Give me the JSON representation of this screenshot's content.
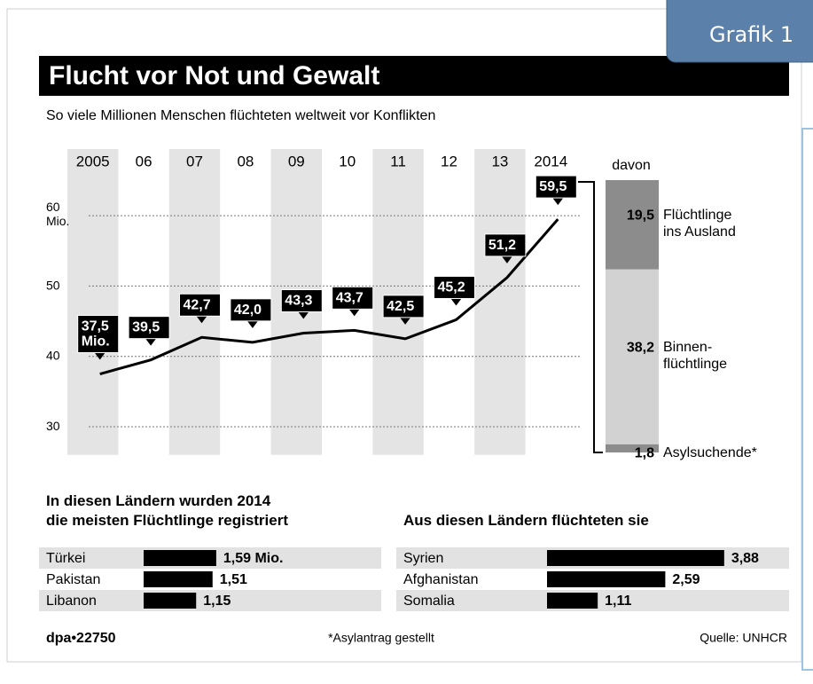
{
  "tab": "Grafik 1",
  "footer": {
    "source_id": "dpa•22750",
    "note": "*Asylantrag gestellt",
    "source": "Quelle: UNHCR"
  },
  "chart_data": [
    {
      "type": "line",
      "title": "Flucht vor Not und Gewalt",
      "subtitle": "So viele Millionen Menschen flüchteten weltweit vor Konflikten",
      "categories": [
        "2005",
        "06",
        "07",
        "08",
        "09",
        "10",
        "11",
        "12",
        "13",
        "2014"
      ],
      "values": [
        37.5,
        39.5,
        42.7,
        42.0,
        43.3,
        43.7,
        42.5,
        45.2,
        51.2,
        59.5
      ],
      "value_labels": [
        "37,5 Mio.",
        "39,5",
        "42,7",
        "42,0",
        "43,3",
        "43,7",
        "42,5",
        "45,2",
        "51,2",
        "59,5"
      ],
      "color": "#000000",
      "ylim": [
        26,
        64
      ],
      "yticks": [
        30,
        40,
        50,
        {
          "value": 60,
          "label": "60 Mio."
        }
      ],
      "grid": true
    },
    {
      "type": "stacked_bar",
      "title": "davon",
      "series": [
        {
          "name": "Asylsuchende*",
          "values": [
            1.8
          ],
          "value_labels": [
            "1,8"
          ],
          "color": "#8c8c8c"
        },
        {
          "name": "Binnen-flüchtlinge",
          "values": [
            38.2
          ],
          "value_labels": [
            "38,2"
          ],
          "color": "#d2d2d2"
        },
        {
          "name": "Flüchtlinge ins Ausland",
          "values": [
            19.5
          ],
          "value_labels": [
            "19,5"
          ],
          "color": "#8c8c8c"
        }
      ]
    },
    {
      "type": "hbar",
      "title": "In diesen Ländern wurden 2014 die meisten Flüchtlinge registriert",
      "categories": [
        "Türkei",
        "Pakistan",
        "Libanon"
      ],
      "values": [
        1.59,
        1.51,
        1.15
      ],
      "value_labels": [
        "1,59 Mio.",
        "1,51",
        "1,15"
      ],
      "color": "#000000"
    },
    {
      "type": "hbar",
      "title": "Aus diesen Ländern flüchteten sie",
      "categories": [
        "Syrien",
        "Afghanistan",
        "Somalia"
      ],
      "values": [
        3.88,
        2.59,
        1.11
      ],
      "value_labels": [
        "3,88",
        "2,59",
        "1,11"
      ],
      "color": "#000000"
    }
  ]
}
